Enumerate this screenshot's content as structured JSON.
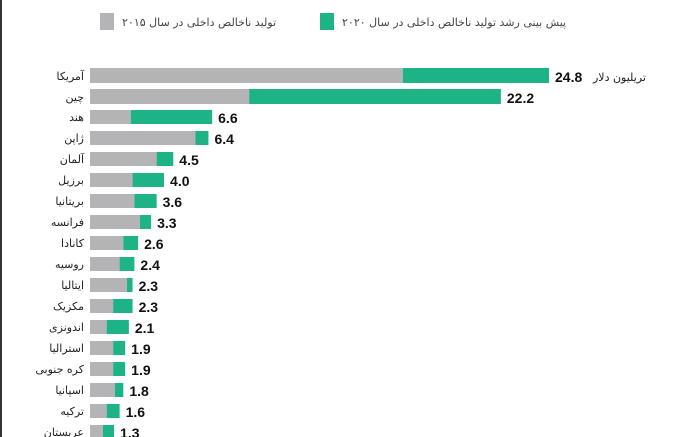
{
  "chart_data": {
    "type": "bar",
    "orientation": "horizontal",
    "stacked": true,
    "unit_label": "تریلیون دلار",
    "categories": [
      "آمریکا",
      "چین",
      "هند",
      "ژاپن",
      "آلمان",
      "برزیل",
      "بریتانیا",
      "فرانسه",
      "کانادا",
      "روسیه",
      "ایتالیا",
      "مکزیک",
      "اندونزی",
      "استرالیا",
      "کره جنوبی",
      "اسپانیا",
      "ترکیه",
      "عربستان"
    ],
    "series": [
      {
        "name": "تولید ناخالص داخلی در سال ۲۰۱۵",
        "color": "#b4b4b6",
        "values": [
          16.9,
          8.6,
          2.2,
          5.7,
          3.6,
          2.3,
          2.4,
          2.7,
          1.8,
          1.6,
          2.0,
          1.25,
          0.9,
          1.25,
          1.25,
          1.35,
          0.9,
          0.7
        ]
      },
      {
        "name": "پیش بینی رشد تولید ناخالص داخلی در سال ۲۰۲۰",
        "color": "#1db386",
        "values": [
          7.9,
          13.6,
          4.4,
          0.7,
          0.9,
          1.7,
          1.2,
          0.6,
          0.8,
          0.8,
          0.3,
          1.05,
          1.2,
          0.65,
          0.65,
          0.45,
          0.7,
          0.6
        ]
      }
    ],
    "totals": [
      "24.8",
      "22.2",
      "6.6",
      "6.4",
      "4.5",
      "4.0",
      "3.6",
      "3.3",
      "2.6",
      "2.4",
      "2.3",
      "2.3",
      "2.1",
      "1.9",
      "1.9",
      "1.8",
      "1.6",
      "1.3"
    ],
    "xlim": [
      0,
      24.8
    ],
    "grid": false,
    "legend_position": "top"
  }
}
